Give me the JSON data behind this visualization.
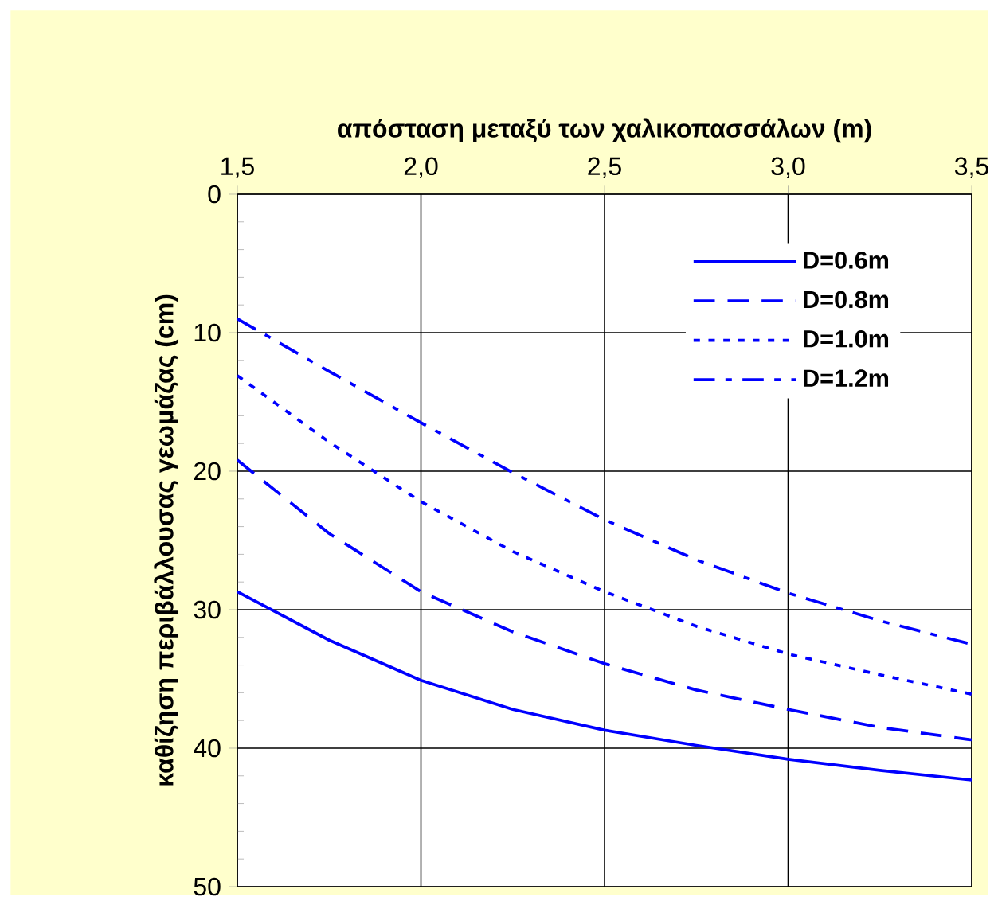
{
  "chart_data": {
    "type": "line",
    "xlabel": "απόσταση μεταξύ των χαλικοπασσάλων (m)",
    "ylabel": "καθίζηση περιβάλλουσας γεωμάζας (cm)",
    "x": [
      1.5,
      1.75,
      2.0,
      2.25,
      2.5,
      2.75,
      3.0,
      3.25,
      3.5
    ],
    "series": [
      {
        "name": "D=0.6m",
        "color": "#0000ff",
        "line_style": "solid",
        "values": [
          28.7,
          32.2,
          35.1,
          37.2,
          38.7,
          39.8,
          40.8,
          41.6,
          42.3
        ]
      },
      {
        "name": "D=0.8m",
        "color": "#0000ff",
        "line_style": "dashed",
        "values": [
          19.2,
          24.5,
          28.7,
          31.6,
          33.9,
          35.8,
          37.2,
          38.5,
          39.4
        ]
      },
      {
        "name": "D=1.0m",
        "color": "#0000ff",
        "line_style": "dotted",
        "values": [
          13.1,
          17.9,
          22.2,
          25.8,
          28.7,
          31.2,
          33.2,
          34.7,
          36.1
        ]
      },
      {
        "name": "D=1.2m",
        "color": "#0000ff",
        "line_style": "dashdot",
        "values": [
          9.0,
          12.8,
          16.5,
          20.1,
          23.5,
          26.4,
          28.8,
          30.8,
          32.5
        ]
      }
    ],
    "xlim": [
      1.5,
      3.5
    ],
    "ylim": [
      50,
      0
    ],
    "xticks": [
      {
        "value": 1.5,
        "label": "1,5"
      },
      {
        "value": 2.0,
        "label": "2,0"
      },
      {
        "value": 2.5,
        "label": "2,5"
      },
      {
        "value": 3.0,
        "label": "3,0"
      },
      {
        "value": 3.5,
        "label": "3,5"
      }
    ],
    "yticks": [
      0,
      10,
      20,
      30,
      40,
      50
    ],
    "grid": true,
    "legend": "top right",
    "marker": "none"
  }
}
